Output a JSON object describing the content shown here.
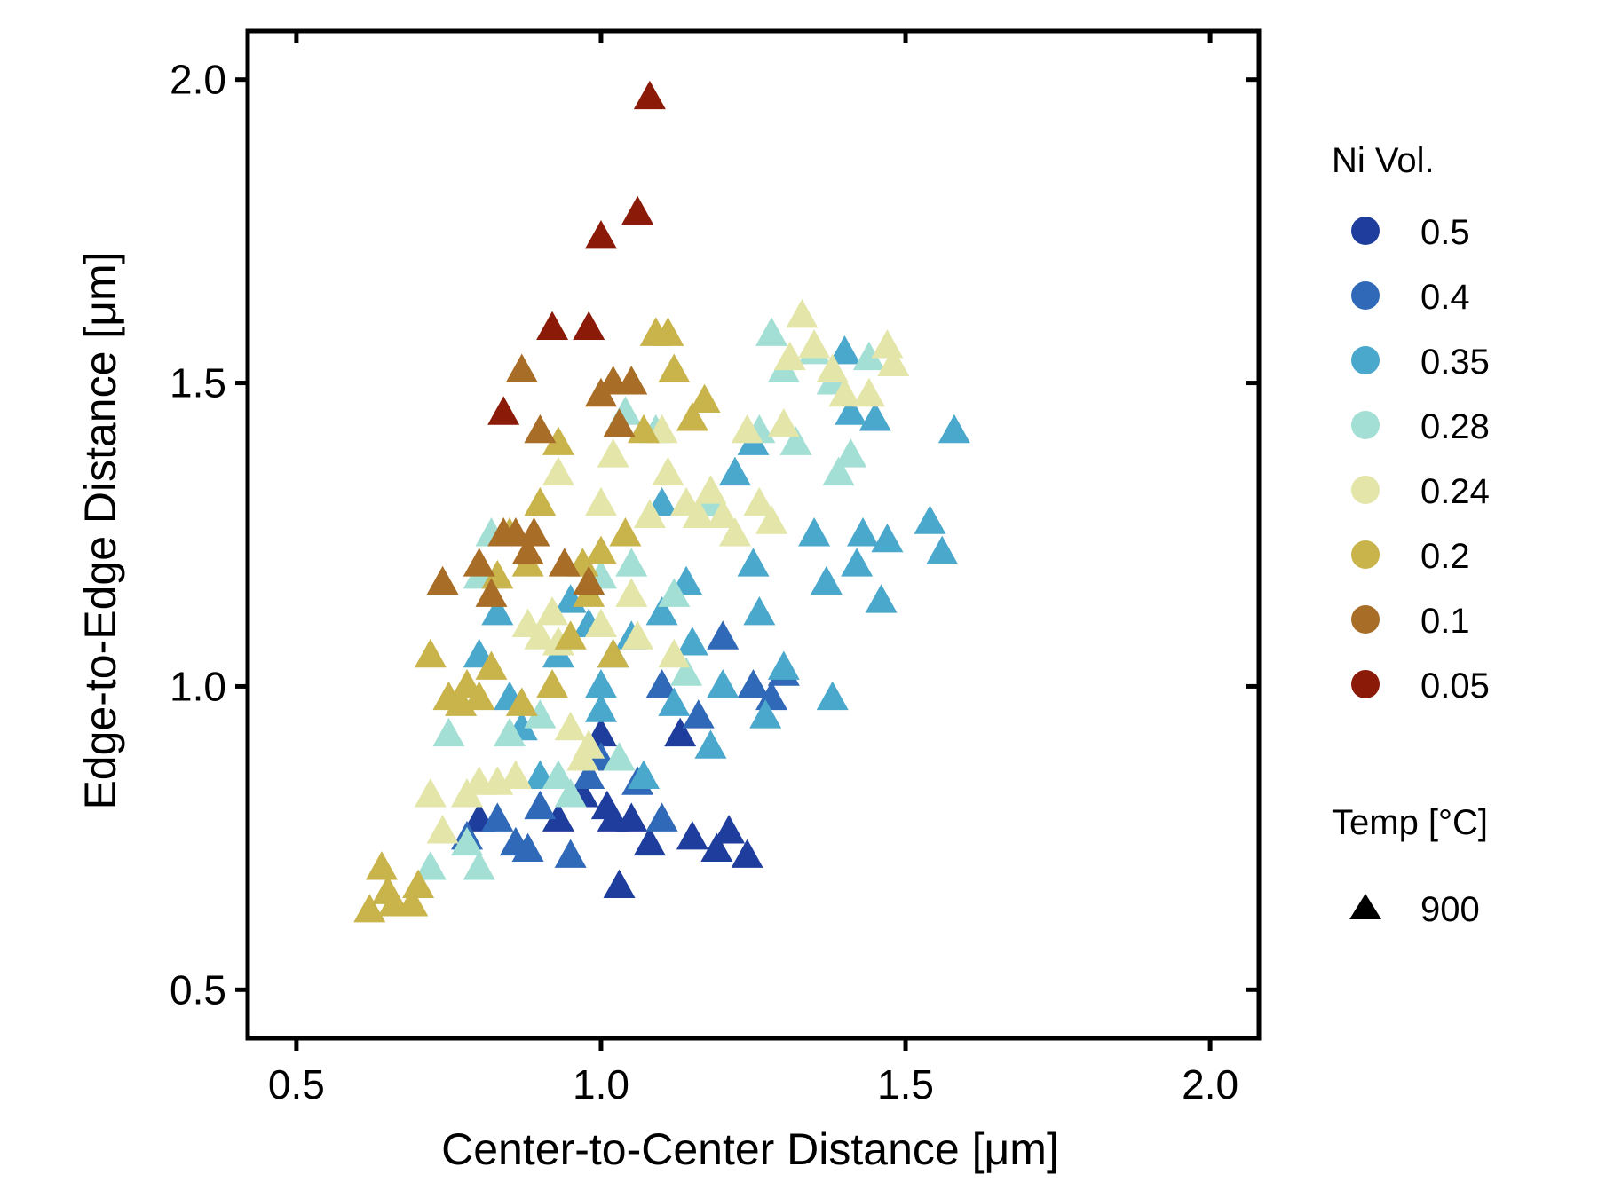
{
  "chart_data": {
    "type": "scatter",
    "xlabel": "Center-to-Center Distance [μm]",
    "ylabel": "Edge-to-Edge Distance [μm]",
    "xlim": [
      0.42,
      2.08
    ],
    "ylim": [
      0.42,
      2.08
    ],
    "xticks": [
      0.5,
      1.0,
      1.5,
      2.0
    ],
    "yticks": [
      0.5,
      1.0,
      1.5,
      2.0
    ],
    "xtick_labels": [
      "0.5",
      "1.0",
      "1.5",
      "2.0"
    ],
    "ytick_labels": [
      "0.5",
      "1.0",
      "1.5",
      "2.0"
    ],
    "grid": false,
    "legend_placement": "right",
    "marker": "triangle",
    "legend": {
      "color_title": "Ni Vol.",
      "shape_title": "Temp [°C]",
      "shape_label": "900"
    },
    "series": [
      {
        "name": "0.5",
        "color": "#1f3d9c",
        "points": [
          [
            0.8,
            0.78
          ],
          [
            0.93,
            0.78
          ],
          [
            0.97,
            0.82
          ],
          [
            1.0,
            0.92
          ],
          [
            1.01,
            0.8
          ],
          [
            1.02,
            0.78
          ],
          [
            1.05,
            0.78
          ],
          [
            1.08,
            0.74
          ],
          [
            1.13,
            0.92
          ],
          [
            1.15,
            0.75
          ],
          [
            1.19,
            0.73
          ],
          [
            1.21,
            0.76
          ],
          [
            1.24,
            0.72
          ],
          [
            1.03,
            0.67
          ]
        ]
      },
      {
        "name": "0.4",
        "color": "#3069b7",
        "points": [
          [
            0.78,
            0.75
          ],
          [
            0.83,
            0.78
          ],
          [
            0.86,
            0.74
          ],
          [
            0.88,
            0.73
          ],
          [
            0.9,
            0.8
          ],
          [
            0.95,
            0.72
          ],
          [
            0.98,
            0.85
          ],
          [
            1.0,
            0.88
          ],
          [
            1.06,
            0.84
          ],
          [
            1.1,
            0.78
          ],
          [
            1.16,
            0.95
          ],
          [
            1.2,
            1.08
          ],
          [
            1.25,
            1.0
          ],
          [
            1.28,
            0.98
          ],
          [
            1.3,
            1.02
          ],
          [
            1.18,
            1.3
          ],
          [
            1.1,
            1.0
          ]
        ]
      },
      {
        "name": "0.35",
        "color": "#4aa8cc",
        "points": [
          [
            0.8,
            1.05
          ],
          [
            0.83,
            1.12
          ],
          [
            0.85,
            0.98
          ],
          [
            0.87,
            0.93
          ],
          [
            0.9,
            0.85
          ],
          [
            0.93,
            1.05
          ],
          [
            0.95,
            1.14
          ],
          [
            0.98,
            1.1
          ],
          [
            1.0,
            1.0
          ],
          [
            1.0,
            0.96
          ],
          [
            1.02,
            1.05
          ],
          [
            1.05,
            1.08
          ],
          [
            1.07,
            0.85
          ],
          [
            1.1,
            1.12
          ],
          [
            1.12,
            0.97
          ],
          [
            1.14,
            1.17
          ],
          [
            1.15,
            1.07
          ],
          [
            1.18,
            0.9
          ],
          [
            1.2,
            1.0
          ],
          [
            1.22,
            1.35
          ],
          [
            1.25,
            1.2
          ],
          [
            1.26,
            1.12
          ],
          [
            1.27,
            0.95
          ],
          [
            1.3,
            1.03
          ],
          [
            1.35,
            1.25
          ],
          [
            1.37,
            1.17
          ],
          [
            1.38,
            0.98
          ],
          [
            1.4,
            1.55
          ],
          [
            1.41,
            1.45
          ],
          [
            1.42,
            1.2
          ],
          [
            1.43,
            1.25
          ],
          [
            1.45,
            1.44
          ],
          [
            1.46,
            1.14
          ],
          [
            1.47,
            1.24
          ],
          [
            1.54,
            1.27
          ],
          [
            1.56,
            1.22
          ],
          [
            1.58,
            1.42
          ],
          [
            1.1,
            1.3
          ],
          [
            1.25,
            1.4
          ]
        ]
      },
      {
        "name": "0.28",
        "color": "#a3dfd4",
        "points": [
          [
            0.72,
            0.7
          ],
          [
            0.75,
            0.92
          ],
          [
            0.78,
            0.74
          ],
          [
            0.8,
            0.7
          ],
          [
            0.8,
            1.18
          ],
          [
            0.82,
            1.25
          ],
          [
            0.85,
            0.92
          ],
          [
            0.9,
            0.95
          ],
          [
            0.93,
            0.85
          ],
          [
            0.95,
            0.82
          ],
          [
            0.97,
            1.2
          ],
          [
            1.0,
            1.18
          ],
          [
            1.03,
            0.88
          ],
          [
            1.04,
            1.45
          ],
          [
            1.05,
            1.2
          ],
          [
            1.09,
            1.42
          ],
          [
            1.12,
            1.15
          ],
          [
            1.14,
            1.02
          ],
          [
            1.18,
            1.3
          ],
          [
            1.26,
            1.42
          ],
          [
            1.28,
            1.58
          ],
          [
            1.3,
            1.52
          ],
          [
            1.32,
            1.4
          ],
          [
            1.35,
            1.55
          ],
          [
            1.38,
            1.5
          ],
          [
            1.39,
            1.35
          ],
          [
            1.41,
            1.38
          ],
          [
            1.44,
            1.54
          ]
        ]
      },
      {
        "name": "0.24",
        "color": "#e3e6a8",
        "points": [
          [
            0.72,
            0.82
          ],
          [
            0.74,
            0.76
          ],
          [
            0.78,
            0.82
          ],
          [
            0.8,
            0.84
          ],
          [
            0.83,
            0.84
          ],
          [
            0.86,
            0.85
          ],
          [
            0.88,
            1.1
          ],
          [
            0.9,
            1.08
          ],
          [
            0.92,
            1.12
          ],
          [
            0.93,
            1.07
          ],
          [
            0.95,
            0.93
          ],
          [
            0.97,
            0.88
          ],
          [
            0.98,
            0.9
          ],
          [
            1.0,
            1.3
          ],
          [
            1.02,
            1.38
          ],
          [
            1.05,
            1.15
          ],
          [
            1.06,
            1.08
          ],
          [
            1.08,
            1.28
          ],
          [
            1.1,
            1.42
          ],
          [
            1.11,
            1.35
          ],
          [
            1.12,
            1.05
          ],
          [
            1.14,
            1.3
          ],
          [
            1.16,
            1.28
          ],
          [
            1.18,
            1.32
          ],
          [
            1.2,
            1.28
          ],
          [
            1.22,
            1.25
          ],
          [
            1.24,
            1.42
          ],
          [
            1.26,
            1.3
          ],
          [
            1.28,
            1.27
          ],
          [
            1.3,
            1.43
          ],
          [
            1.31,
            1.54
          ],
          [
            1.33,
            1.61
          ],
          [
            1.35,
            1.56
          ],
          [
            1.38,
            1.52
          ],
          [
            1.4,
            1.48
          ],
          [
            1.44,
            1.48
          ],
          [
            1.47,
            1.56
          ],
          [
            1.48,
            1.53
          ],
          [
            0.93,
            1.35
          ],
          [
            1.0,
            1.1
          ]
        ]
      },
      {
        "name": "0.2",
        "color": "#c9b44b",
        "points": [
          [
            0.62,
            0.63
          ],
          [
            0.64,
            0.7
          ],
          [
            0.65,
            0.66
          ],
          [
            0.66,
            0.64
          ],
          [
            0.69,
            0.64
          ],
          [
            0.7,
            0.67
          ],
          [
            0.72,
            1.05
          ],
          [
            0.75,
            0.98
          ],
          [
            0.77,
            0.97
          ],
          [
            0.78,
            1.0
          ],
          [
            0.8,
            0.98
          ],
          [
            0.82,
            1.03
          ],
          [
            0.83,
            1.18
          ],
          [
            0.85,
            1.25
          ],
          [
            0.87,
            0.97
          ],
          [
            0.88,
            1.2
          ],
          [
            0.9,
            1.3
          ],
          [
            0.92,
            1.0
          ],
          [
            0.93,
            1.4
          ],
          [
            0.95,
            1.08
          ],
          [
            0.97,
            1.2
          ],
          [
            0.98,
            1.15
          ],
          [
            1.0,
            1.22
          ],
          [
            1.02,
            1.05
          ],
          [
            1.04,
            1.25
          ],
          [
            1.07,
            1.42
          ],
          [
            1.09,
            1.58
          ],
          [
            1.11,
            1.58
          ],
          [
            1.12,
            1.52
          ],
          [
            1.15,
            1.44
          ],
          [
            1.17,
            1.47
          ]
        ]
      },
      {
        "name": "0.1",
        "color": "#a86d26",
        "points": [
          [
            0.74,
            1.17
          ],
          [
            0.8,
            1.2
          ],
          [
            0.82,
            1.15
          ],
          [
            0.84,
            1.25
          ],
          [
            0.86,
            1.25
          ],
          [
            0.87,
            1.52
          ],
          [
            0.88,
            1.22
          ],
          [
            0.89,
            1.25
          ],
          [
            0.9,
            1.42
          ],
          [
            0.94,
            1.2
          ],
          [
            0.98,
            1.17
          ],
          [
            1.0,
            1.48
          ],
          [
            1.02,
            1.5
          ],
          [
            1.03,
            1.43
          ],
          [
            1.05,
            1.5
          ]
        ]
      },
      {
        "name": "0.05",
        "color": "#8b1a08",
        "points": [
          [
            0.84,
            1.45
          ],
          [
            0.92,
            1.59
          ],
          [
            0.98,
            1.59
          ],
          [
            1.0,
            1.74
          ],
          [
            1.06,
            1.78
          ],
          [
            1.08,
            1.97
          ]
        ]
      }
    ]
  }
}
